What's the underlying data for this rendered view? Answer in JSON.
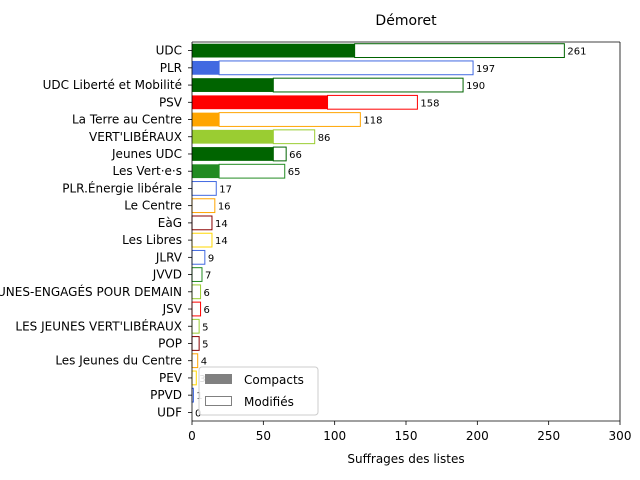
{
  "chart_data": {
    "type": "bar",
    "orientation": "horizontal",
    "title": "Démoret",
    "xlabel": "Suffrages des listes",
    "ylabel": "",
    "xlim": [
      0,
      300
    ],
    "xticks": [
      0,
      50,
      100,
      150,
      200,
      250,
      300
    ],
    "grid": false,
    "legend_position": "lower-left",
    "legend": [
      {
        "label": "Compacts",
        "style": "filled",
        "color": "#808080"
      },
      {
        "label": "Modifiés",
        "style": "outline",
        "color": "#808080"
      }
    ],
    "categories": [
      "UDC",
      "PLR",
      "UDC Liberté et Mobilité",
      "PSV",
      "La Terre au Centre",
      "VERT'LIBÉRAUX",
      "Jeunes UDC",
      "Les Vert·e·s",
      "PLR.Énergie libérale",
      "Le Centre",
      "EàG",
      "Les Libres",
      "JLRV",
      "JVVD",
      "LES JEUNES-ENGAGÉS POUR DEMAIN",
      "JSV",
      "LES JEUNES VERT'LIBÉRAUX",
      "POP",
      "Les Jeunes du Centre",
      "PEV",
      "PPVD",
      "UDF"
    ],
    "series": [
      {
        "name": "Compacts",
        "values": [
          114,
          19,
          57,
          95,
          19,
          57,
          57,
          19,
          0,
          0,
          0,
          0,
          0,
          0,
          0,
          0,
          0,
          0,
          0,
          0,
          0,
          0
        ]
      },
      {
        "name": "Modifiés",
        "values": [
          147,
          178,
          133,
          63,
          99,
          29,
          9,
          46,
          17,
          16,
          14,
          14,
          9,
          7,
          6,
          6,
          5,
          5,
          4,
          3,
          1,
          0
        ]
      }
    ],
    "totals": [
      261,
      197,
      190,
      158,
      118,
      86,
      66,
      65,
      17,
      16,
      14,
      14,
      9,
      7,
      6,
      6,
      5,
      5,
      4,
      3,
      1,
      0
    ],
    "colors": [
      "#006400",
      "#4169e1",
      "#006400",
      "#ff0000",
      "#ffa500",
      "#9acd32",
      "#006400",
      "#228b22",
      "#4169e1",
      "#ffa500",
      "#8b0000",
      "#ffd700",
      "#4169e1",
      "#228b22",
      "#9acd32",
      "#ff0000",
      "#9acd32",
      "#8b0000",
      "#ffa500",
      "#ffd700",
      "#4169e1",
      "#006400"
    ]
  }
}
